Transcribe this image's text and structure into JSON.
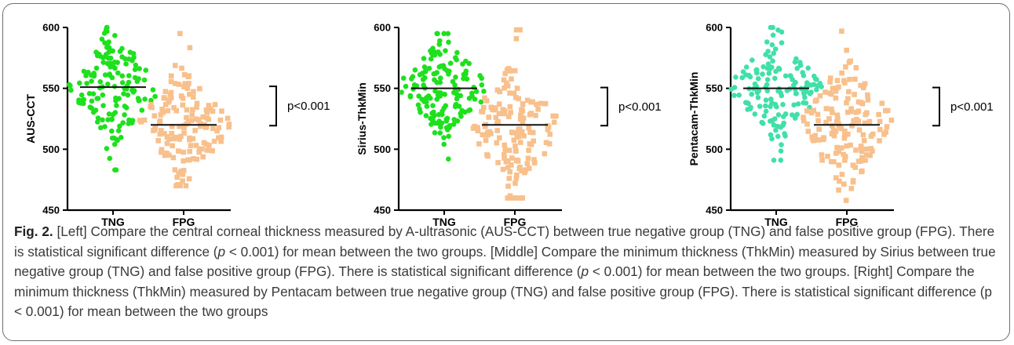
{
  "chart_data": [
    {
      "type": "scatter",
      "ylabel": "AUS-CCT",
      "ylim": [
        450,
        600
      ],
      "yticks": [
        450,
        500,
        550,
        600
      ],
      "categories": [
        "TNG",
        "FPG"
      ],
      "series": [
        {
          "category": "TNG",
          "color": "#1ee01e",
          "marker": "circle",
          "mean": 551,
          "min": 483,
          "max": 600,
          "count": 150
        },
        {
          "category": "FPG",
          "color": "#f8c08c",
          "marker": "square",
          "mean": 520,
          "min": 470,
          "max": 595,
          "count": 150
        }
      ],
      "annotation": "p<0.001"
    },
    {
      "type": "scatter",
      "ylabel": "Sirius-ThkMin",
      "ylim": [
        450,
        600
      ],
      "yticks": [
        450,
        500,
        550,
        600
      ],
      "categories": [
        "TNG",
        "FPG"
      ],
      "series": [
        {
          "category": "TNG",
          "color": "#1ee01e",
          "marker": "circle",
          "mean": 550,
          "min": 492,
          "max": 595,
          "count": 150
        },
        {
          "category": "FPG",
          "color": "#f8c08c",
          "marker": "square",
          "mean": 520,
          "min": 460,
          "max": 598,
          "count": 150
        }
      ],
      "annotation": "p<0.001"
    },
    {
      "type": "scatter",
      "ylabel": "Pentacam-ThkMin",
      "ylim": [
        450,
        600
      ],
      "yticks": [
        450,
        500,
        550,
        600
      ],
      "categories": [
        "TNG",
        "FPG"
      ],
      "series": [
        {
          "category": "TNG",
          "color": "#40e0a8",
          "marker": "circle",
          "mean": 550,
          "min": 491,
          "max": 600,
          "count": 150
        },
        {
          "category": "FPG",
          "color": "#f8c08c",
          "marker": "square",
          "mean": 520,
          "min": 458,
          "max": 597,
          "count": 150
        }
      ],
      "annotation": "p<0.001"
    }
  ],
  "caption": {
    "label": "Fig. 2.",
    "parts": [
      " [Left] Compare the central corneal thickness measured by A-ultrasonic (AUS-CCT) between true negative group (TNG) and false positive group (FPG). There is statistical significant difference (",
      "p",
      " < 0.001) for mean between the two groups. [Middle] Compare the minimum thickness (ThkMin) measured by Sirius between true negative group (TNG) and false positive group (FPG). There is statistical significant difference (",
      "p",
      " < 0.001) for mean between the two groups. [Right] Compare the minimum thickness (ThkMin) measured by Pentacam between true negative group (TNG) and false positive group (FPG). There is statistical significant difference (p < 0.001) for mean between the two groups"
    ]
  }
}
